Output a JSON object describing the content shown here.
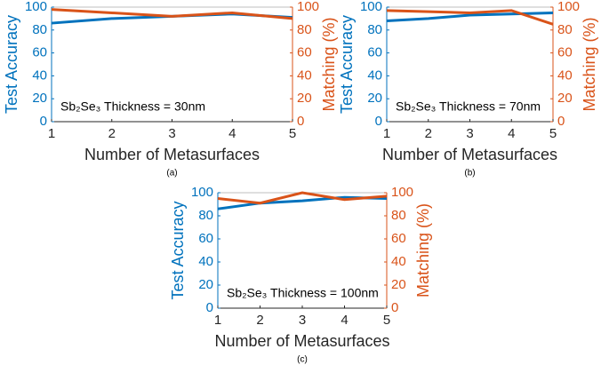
{
  "chart_data": [
    {
      "type": "line",
      "x": [
        1,
        2,
        3,
        4,
        5
      ],
      "xlim": [
        1,
        5
      ],
      "xticks": [
        1,
        2,
        3,
        4,
        5
      ],
      "ylim": [
        0,
        100
      ],
      "yticks": [
        0,
        20,
        40,
        60,
        80,
        100
      ],
      "y2lim": [
        0,
        100
      ],
      "y2ticks": [
        0,
        20,
        40,
        60,
        80,
        100
      ],
      "xlabel": "Number of Metasurfaces",
      "ylabel": "Test Accuracy",
      "y2label": "Matching (%)",
      "annotation": "Sb₂Se₃ Thickness = 30nm",
      "caption": "(a)",
      "series": [
        {
          "color": "#0072bd",
          "values": [
            86,
            90,
            92,
            94,
            91
          ]
        },
        {
          "color": "#d95319",
          "axis": "y2",
          "values": [
            98,
            95,
            92,
            95,
            90
          ]
        }
      ]
    },
    {
      "type": "line",
      "x": [
        1,
        2,
        3,
        4,
        5
      ],
      "xlim": [
        1,
        5
      ],
      "xticks": [
        1,
        2,
        3,
        4,
        5
      ],
      "ylim": [
        0,
        100
      ],
      "yticks": [
        0,
        20,
        40,
        60,
        80,
        100
      ],
      "y2lim": [
        0,
        100
      ],
      "y2ticks": [
        0,
        20,
        40,
        60,
        80,
        100
      ],
      "xlabel": "Number of Metasurfaces",
      "ylabel": "Test Accuracy",
      "y2label": "Matching (%)",
      "annotation": "Sb₂Se₃ Thickness = 70nm",
      "caption": "(b)",
      "series": [
        {
          "color": "#0072bd",
          "values": [
            88,
            90,
            93,
            94,
            95
          ]
        },
        {
          "color": "#d95319",
          "axis": "y2",
          "values": [
            97,
            96,
            95,
            97,
            85
          ]
        }
      ]
    },
    {
      "type": "line",
      "x": [
        1,
        2,
        3,
        4,
        5
      ],
      "xlim": [
        1,
        5
      ],
      "xticks": [
        1,
        2,
        3,
        4,
        5
      ],
      "ylim": [
        0,
        100
      ],
      "yticks": [
        0,
        20,
        40,
        60,
        80,
        100
      ],
      "y2lim": [
        0,
        100
      ],
      "y2ticks": [
        0,
        20,
        40,
        60,
        80,
        100
      ],
      "xlabel": "Number of Metasurfaces",
      "ylabel": "Test Accuracy",
      "y2label": "Matching (%)",
      "annotation": "Sb₂Se₃ Thickness = 100nm",
      "caption": "(c)",
      "series": [
        {
          "color": "#0072bd",
          "values": [
            86,
            91,
            93,
            96,
            95
          ]
        },
        {
          "color": "#d95319",
          "axis": "y2",
          "values": [
            95,
            91,
            100,
            94,
            97
          ]
        }
      ]
    }
  ]
}
